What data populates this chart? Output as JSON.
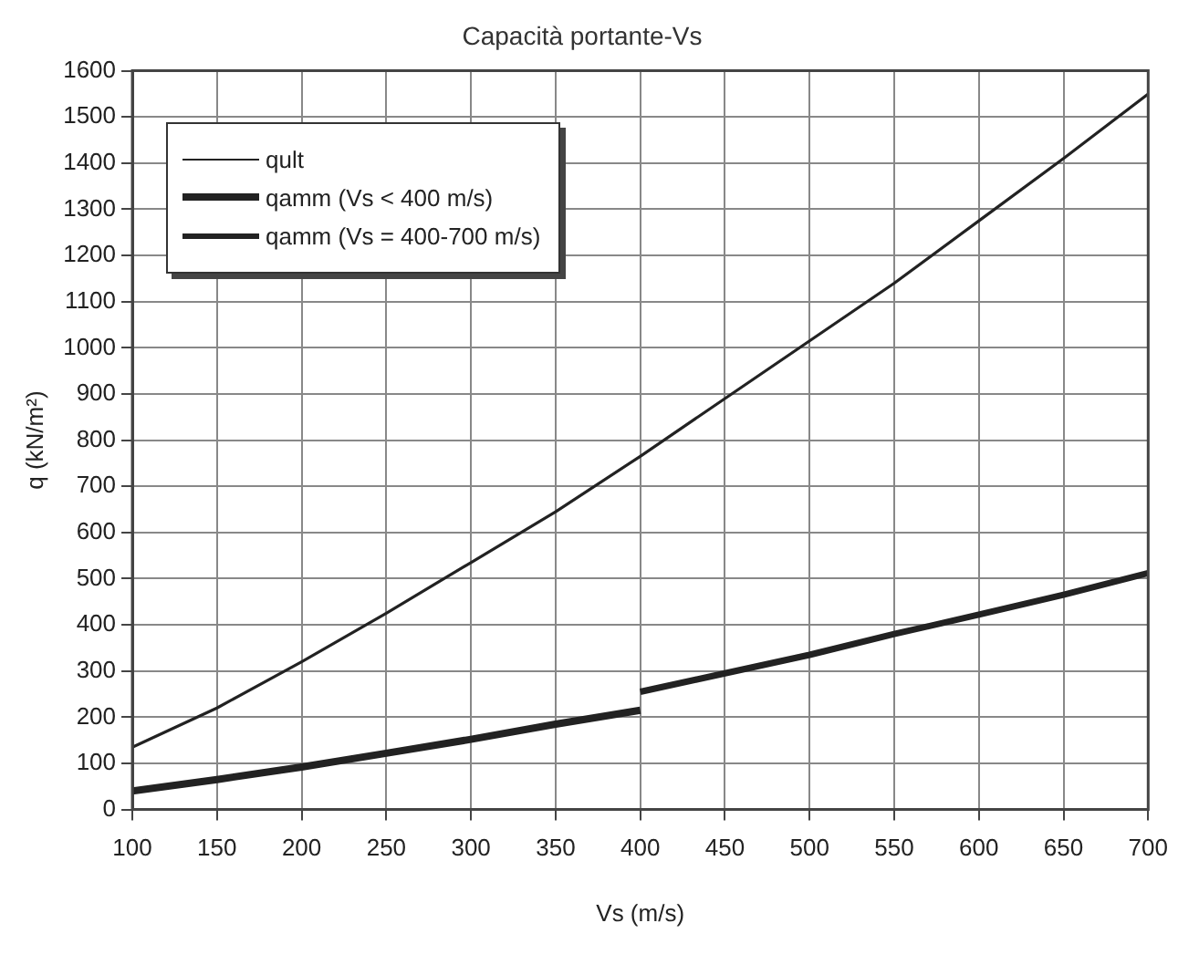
{
  "chart_data": {
    "type": "line",
    "title": "Capacità portante-Vs",
    "xlabel": "Vs (m/s)",
    "ylabel": "q (kN/m²)",
    "xlim": [
      100,
      700
    ],
    "xticks": [
      100,
      150,
      200,
      250,
      300,
      350,
      400,
      450,
      500,
      550,
      600,
      650,
      700
    ],
    "ylim": [
      0,
      1600
    ],
    "yticks": [
      0,
      100,
      200,
      300,
      400,
      500,
      600,
      700,
      800,
      900,
      1000,
      1100,
      1200,
      1300,
      1400,
      1500,
      1600
    ],
    "grid": true,
    "legend": "top left",
    "marker": "none",
    "line_style": "solid",
    "series": [
      {
        "name": "qult",
        "color": "#222222",
        "x": [
          100,
          150,
          200,
          250,
          300,
          350,
          400,
          450,
          500,
          550,
          600,
          650,
          700
        ],
        "values": [
          135,
          220,
          320,
          425,
          535,
          645,
          765,
          890,
          1015,
          1140,
          1275,
          1410,
          1550
        ]
      },
      {
        "name": "qamm (Vs < 400 m/s)",
        "color": "#222222",
        "x": [
          100,
          150,
          200,
          250,
          300,
          350,
          400
        ],
        "values": [
          40,
          65,
          92,
          122,
          152,
          185,
          215
        ]
      },
      {
        "name": "qamm (Vs = 400-700 m/s)",
        "color": "#222222",
        "x": [
          400,
          450,
          500,
          550,
          600,
          650,
          700
        ],
        "values": [
          255,
          295,
          335,
          380,
          422,
          465,
          512
        ]
      }
    ]
  }
}
